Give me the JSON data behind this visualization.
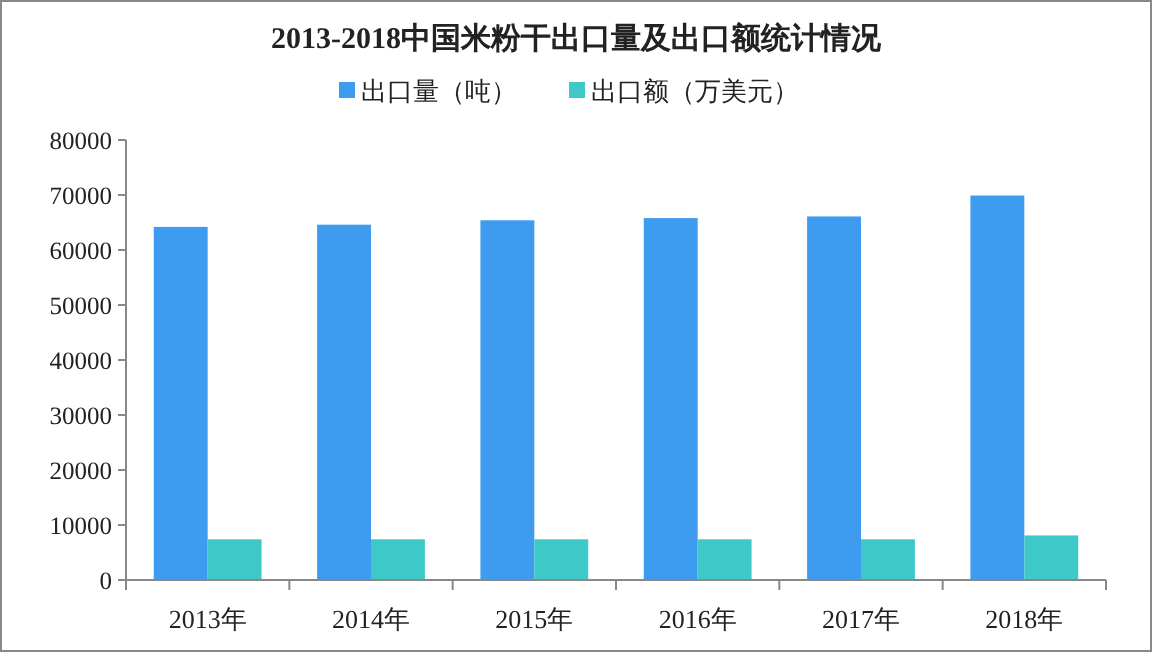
{
  "chart_data": {
    "type": "bar",
    "title": "2013-2018中国米粉干出口量及出口额统计情况",
    "categories": [
      "2013年",
      "2014年",
      "2015年",
      "2016年",
      "2017年",
      "2018年"
    ],
    "series": [
      {
        "name": "出口量（吨）",
        "color": "#3d9bf0",
        "values": [
          64200,
          64600,
          65400,
          65800,
          66100,
          69900
        ]
      },
      {
        "name": "出口额（万美元）",
        "color": "#3ec8c8",
        "values": [
          7400,
          7400,
          7400,
          7400,
          7400,
          8100
        ]
      }
    ],
    "ylim": [
      0,
      80000
    ],
    "yticks": [
      0,
      10000,
      20000,
      30000,
      40000,
      50000,
      60000,
      70000,
      80000
    ],
    "legend": "top",
    "grid": false
  }
}
